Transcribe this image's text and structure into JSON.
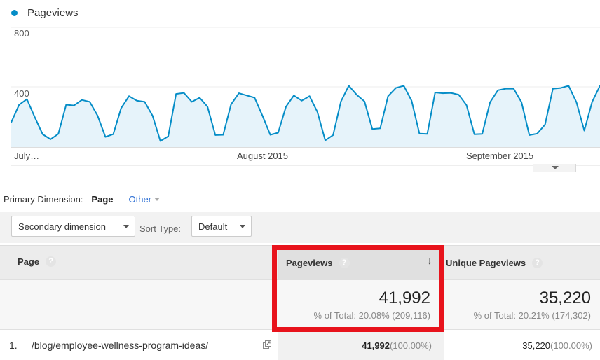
{
  "chart": {
    "legend_label": "Pageviews",
    "y_ticks": [
      "800",
      "400"
    ],
    "x_labels": [
      "July…",
      "August 2015",
      "September 2015"
    ],
    "series_color": "#058dc7",
    "fill_color": "#e6f3fa"
  },
  "chart_data": {
    "type": "area",
    "y_range": [
      0,
      800
    ],
    "series": [
      {
        "name": "Pageviews",
        "values": [
          165,
          282,
          320,
          200,
          86,
          52,
          88,
          283,
          278,
          315,
          302,
          210,
          68,
          86,
          260,
          340,
          310,
          302,
          210,
          40,
          72,
          355,
          362,
          302,
          330,
          270,
          80,
          82,
          285,
          360,
          345,
          330,
          210,
          82,
          96,
          270,
          345,
          310,
          340,
          235,
          45,
          80,
          305,
          410,
          350,
          305,
          120,
          125,
          340,
          395,
          410,
          310,
          90,
          88,
          365,
          360,
          362,
          350,
          280,
          85,
          88,
          300,
          380,
          390,
          390,
          300,
          80,
          90,
          150,
          390,
          395,
          410,
          300,
          110,
          302,
          410
        ]
      }
    ]
  },
  "primary_dimension": {
    "label": "Primary Dimension:",
    "active": "Page",
    "other": "Other"
  },
  "toolbar": {
    "secondary_dimension": "Secondary dimension",
    "sort_type_label": "Sort Type:",
    "sort_type_value": "Default"
  },
  "table": {
    "columns": {
      "page": "Page",
      "pageviews": "Pageviews",
      "unique_pageviews": "Unique Pageviews"
    },
    "help_glyph": "?",
    "sort_glyph": "↓",
    "totals": {
      "pageviews": "41,992",
      "pageviews_pct": "% of Total: 20.08% (209,116)",
      "unique_pageviews": "35,220",
      "unique_pageviews_pct": "% of Total: 20.21% (174,302)"
    },
    "rows": [
      {
        "index": "1.",
        "page": "/blog/employee-wellness-program-ideas/",
        "pageviews": "41,992",
        "pageviews_pct": "(100.00%)",
        "unique_pageviews": "35,220",
        "unique_pageviews_pct": "(100.00%)"
      }
    ]
  },
  "highlight_color": "#e8131c"
}
